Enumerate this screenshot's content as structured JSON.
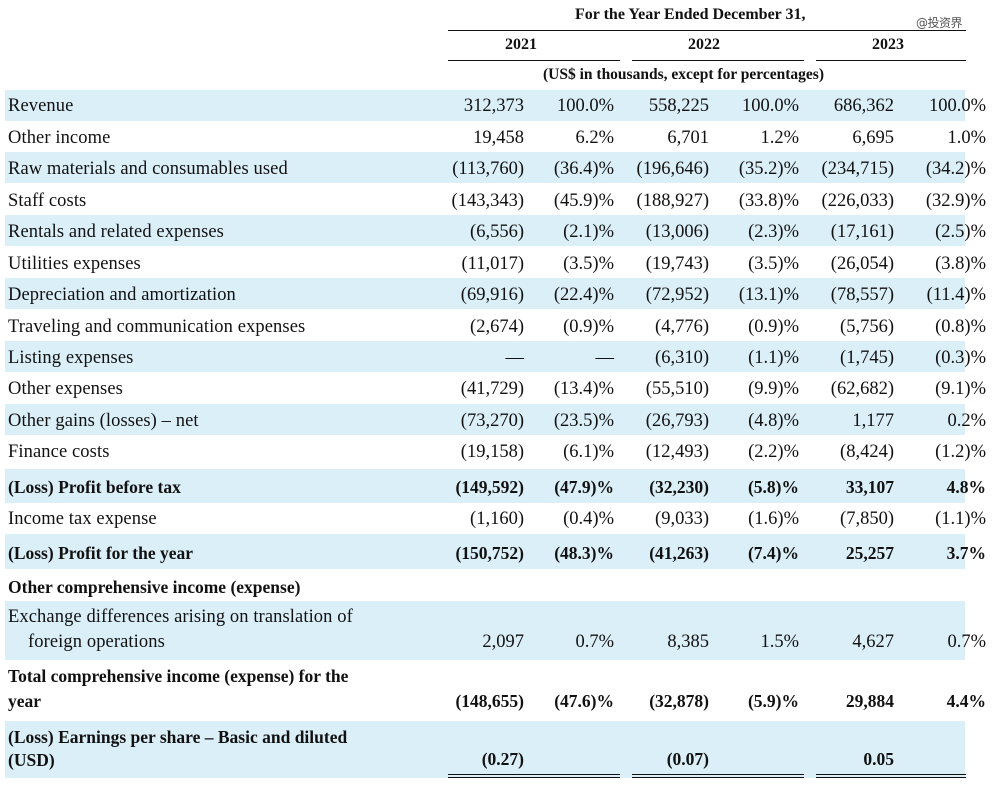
{
  "header": {
    "period": "For the Year Ended December 31,",
    "years": [
      "2021",
      "2022",
      "2023"
    ],
    "units": "(US$ in thousands, except for percentages)"
  },
  "watermark": "@投资界",
  "rows": [
    {
      "label": "Revenue",
      "v": [
        "312,373",
        "100.0%",
        "558,225",
        "100.0%",
        "686,362",
        "100.0%"
      ]
    },
    {
      "label": "Other income",
      "v": [
        "19,458",
        "6.2%",
        "6,701",
        "1.2%",
        "6,695",
        "1.0%"
      ]
    },
    {
      "label": "Raw materials and consumables used",
      "v": [
        "(113,760)",
        "(36.4)%",
        "(196,646)",
        "(35.2)%",
        "(234,715)",
        "(34.2)%"
      ]
    },
    {
      "label": "Staff costs",
      "v": [
        "(143,343)",
        "(45.9)%",
        "(188,927)",
        "(33.8)%",
        "(226,033)",
        "(32.9)%"
      ]
    },
    {
      "label": "Rentals and related expenses",
      "v": [
        "(6,556)",
        "(2.1)%",
        "(13,006)",
        "(2.3)%",
        "(17,161)",
        "(2.5)%"
      ]
    },
    {
      "label": "Utilities expenses",
      "v": [
        "(11,017)",
        "(3.5)%",
        "(19,743)",
        "(3.5)%",
        "(26,054)",
        "(3.8)%"
      ]
    },
    {
      "label": "Depreciation and amortization",
      "v": [
        "(69,916)",
        "(22.4)%",
        "(72,952)",
        "(13.1)%",
        "(78,557)",
        "(11.4)%"
      ]
    },
    {
      "label": "Traveling and communication expenses",
      "v": [
        "(2,674)",
        "(0.9)%",
        "(4,776)",
        "(0.9)%",
        "(5,756)",
        "(0.8)%"
      ]
    },
    {
      "label": "Listing expenses",
      "v": [
        "—",
        "—",
        "(6,310)",
        "(1.1)%",
        "(1,745)",
        "(0.3)%"
      ]
    },
    {
      "label": "Other expenses",
      "v": [
        "(41,729)",
        "(13.4)%",
        "(55,510)",
        "(9.9)%",
        "(62,682)",
        "(9.1)%"
      ]
    },
    {
      "label": "Other gains (losses) – net",
      "v": [
        "(73,270)",
        "(23.5)%",
        "(26,793)",
        "(4.8)%",
        "1,177",
        "0.2%"
      ]
    },
    {
      "label": "Finance costs",
      "v": [
        "(19,158)",
        "(6.1)%",
        "(12,493)",
        "(2.2)%",
        "(8,424)",
        "(1.2)%"
      ]
    },
    {
      "label": "(Loss) Profit before tax",
      "v": [
        "(149,592)",
        "(47.9)%",
        "(32,230)",
        "(5.8)%",
        "33,107",
        "4.8%"
      ]
    },
    {
      "label": "Income tax expense",
      "v": [
        "(1,160)",
        "(0.4)%",
        "(9,033)",
        "(1.6)%",
        "(7,850)",
        "(1.1)%"
      ]
    },
    {
      "label": "(Loss) Profit for the year",
      "v": [
        "(150,752)",
        "(48.3)%",
        "(41,263)",
        "(7.4)%",
        "25,257",
        "3.7%"
      ]
    },
    {
      "label": "Other comprehensive income (expense)",
      "v": []
    },
    {
      "label": [
        "Exchange differences arising on translation of",
        "foreign operations"
      ],
      "v": [
        "2,097",
        "0.7%",
        "8,385",
        "1.5%",
        "4,627",
        "0.7%"
      ]
    },
    {
      "label": [
        "Total comprehensive income (expense) for the",
        "year"
      ],
      "v": [
        "(148,655)",
        "(47.6)%",
        "(32,878)",
        "(5.9)%",
        "29,884",
        "4.4%"
      ]
    },
    {
      "label": [
        "(Loss) Earnings per share – Basic and diluted",
        "(USD)"
      ],
      "v": [
        "(0.27)",
        "",
        "(0.07)",
        "",
        "0.05",
        ""
      ]
    }
  ]
}
